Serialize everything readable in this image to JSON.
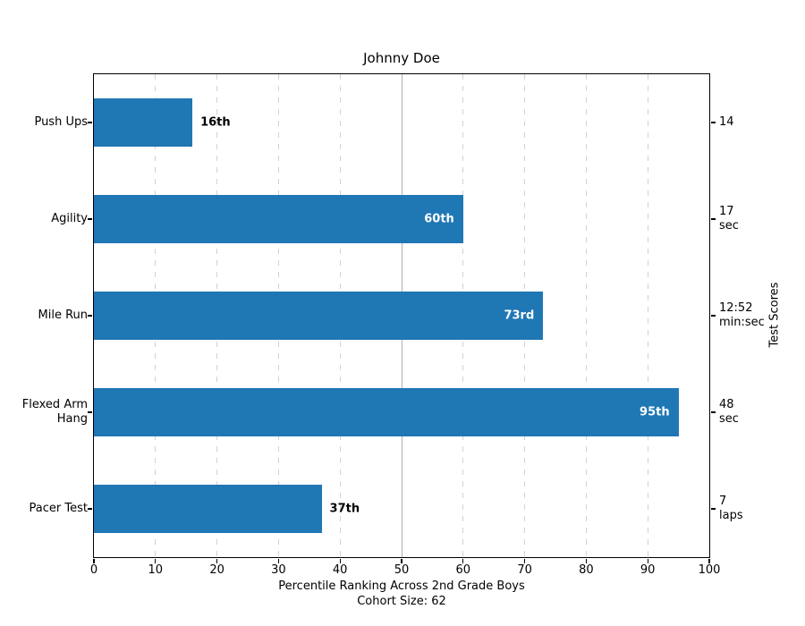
{
  "chart_data": {
    "type": "bar",
    "orientation": "horizontal",
    "title": "Johnny Doe",
    "xlabel": "Percentile Ranking Across 2nd Grade Boys",
    "xlabel_sub": "Cohort Size: 62",
    "right_ylabel": "Test Scores",
    "xlim": [
      0,
      100
    ],
    "x_ticks": [
      0,
      10,
      20,
      30,
      40,
      50,
      60,
      70,
      80,
      90,
      100
    ],
    "grid": "vertical dashed",
    "reference_line_x": 50,
    "bar_color": "#1f77b4",
    "grid_color": "#d2d2d2",
    "reference_line_color": "#b0b0b0",
    "rows": [
      {
        "category_lines": [
          "Push Ups"
        ],
        "percentile": 16,
        "label": "16th",
        "label_inside": false,
        "score_lines": [
          "14"
        ]
      },
      {
        "category_lines": [
          "Agility"
        ],
        "percentile": 60,
        "label": "60th",
        "label_inside": true,
        "score_lines": [
          "17",
          "sec"
        ]
      },
      {
        "category_lines": [
          "Mile Run"
        ],
        "percentile": 73,
        "label": "73rd",
        "label_inside": true,
        "score_lines": [
          "12:52",
          "min:sec"
        ]
      },
      {
        "category_lines": [
          "Flexed Arm",
          "Hang"
        ],
        "percentile": 95,
        "label": "95th",
        "label_inside": true,
        "score_lines": [
          "48",
          "sec"
        ]
      },
      {
        "category_lines": [
          "Pacer Test"
        ],
        "percentile": 37,
        "label": "37th",
        "label_inside": false,
        "score_lines": [
          "7",
          "laps"
        ]
      }
    ]
  }
}
